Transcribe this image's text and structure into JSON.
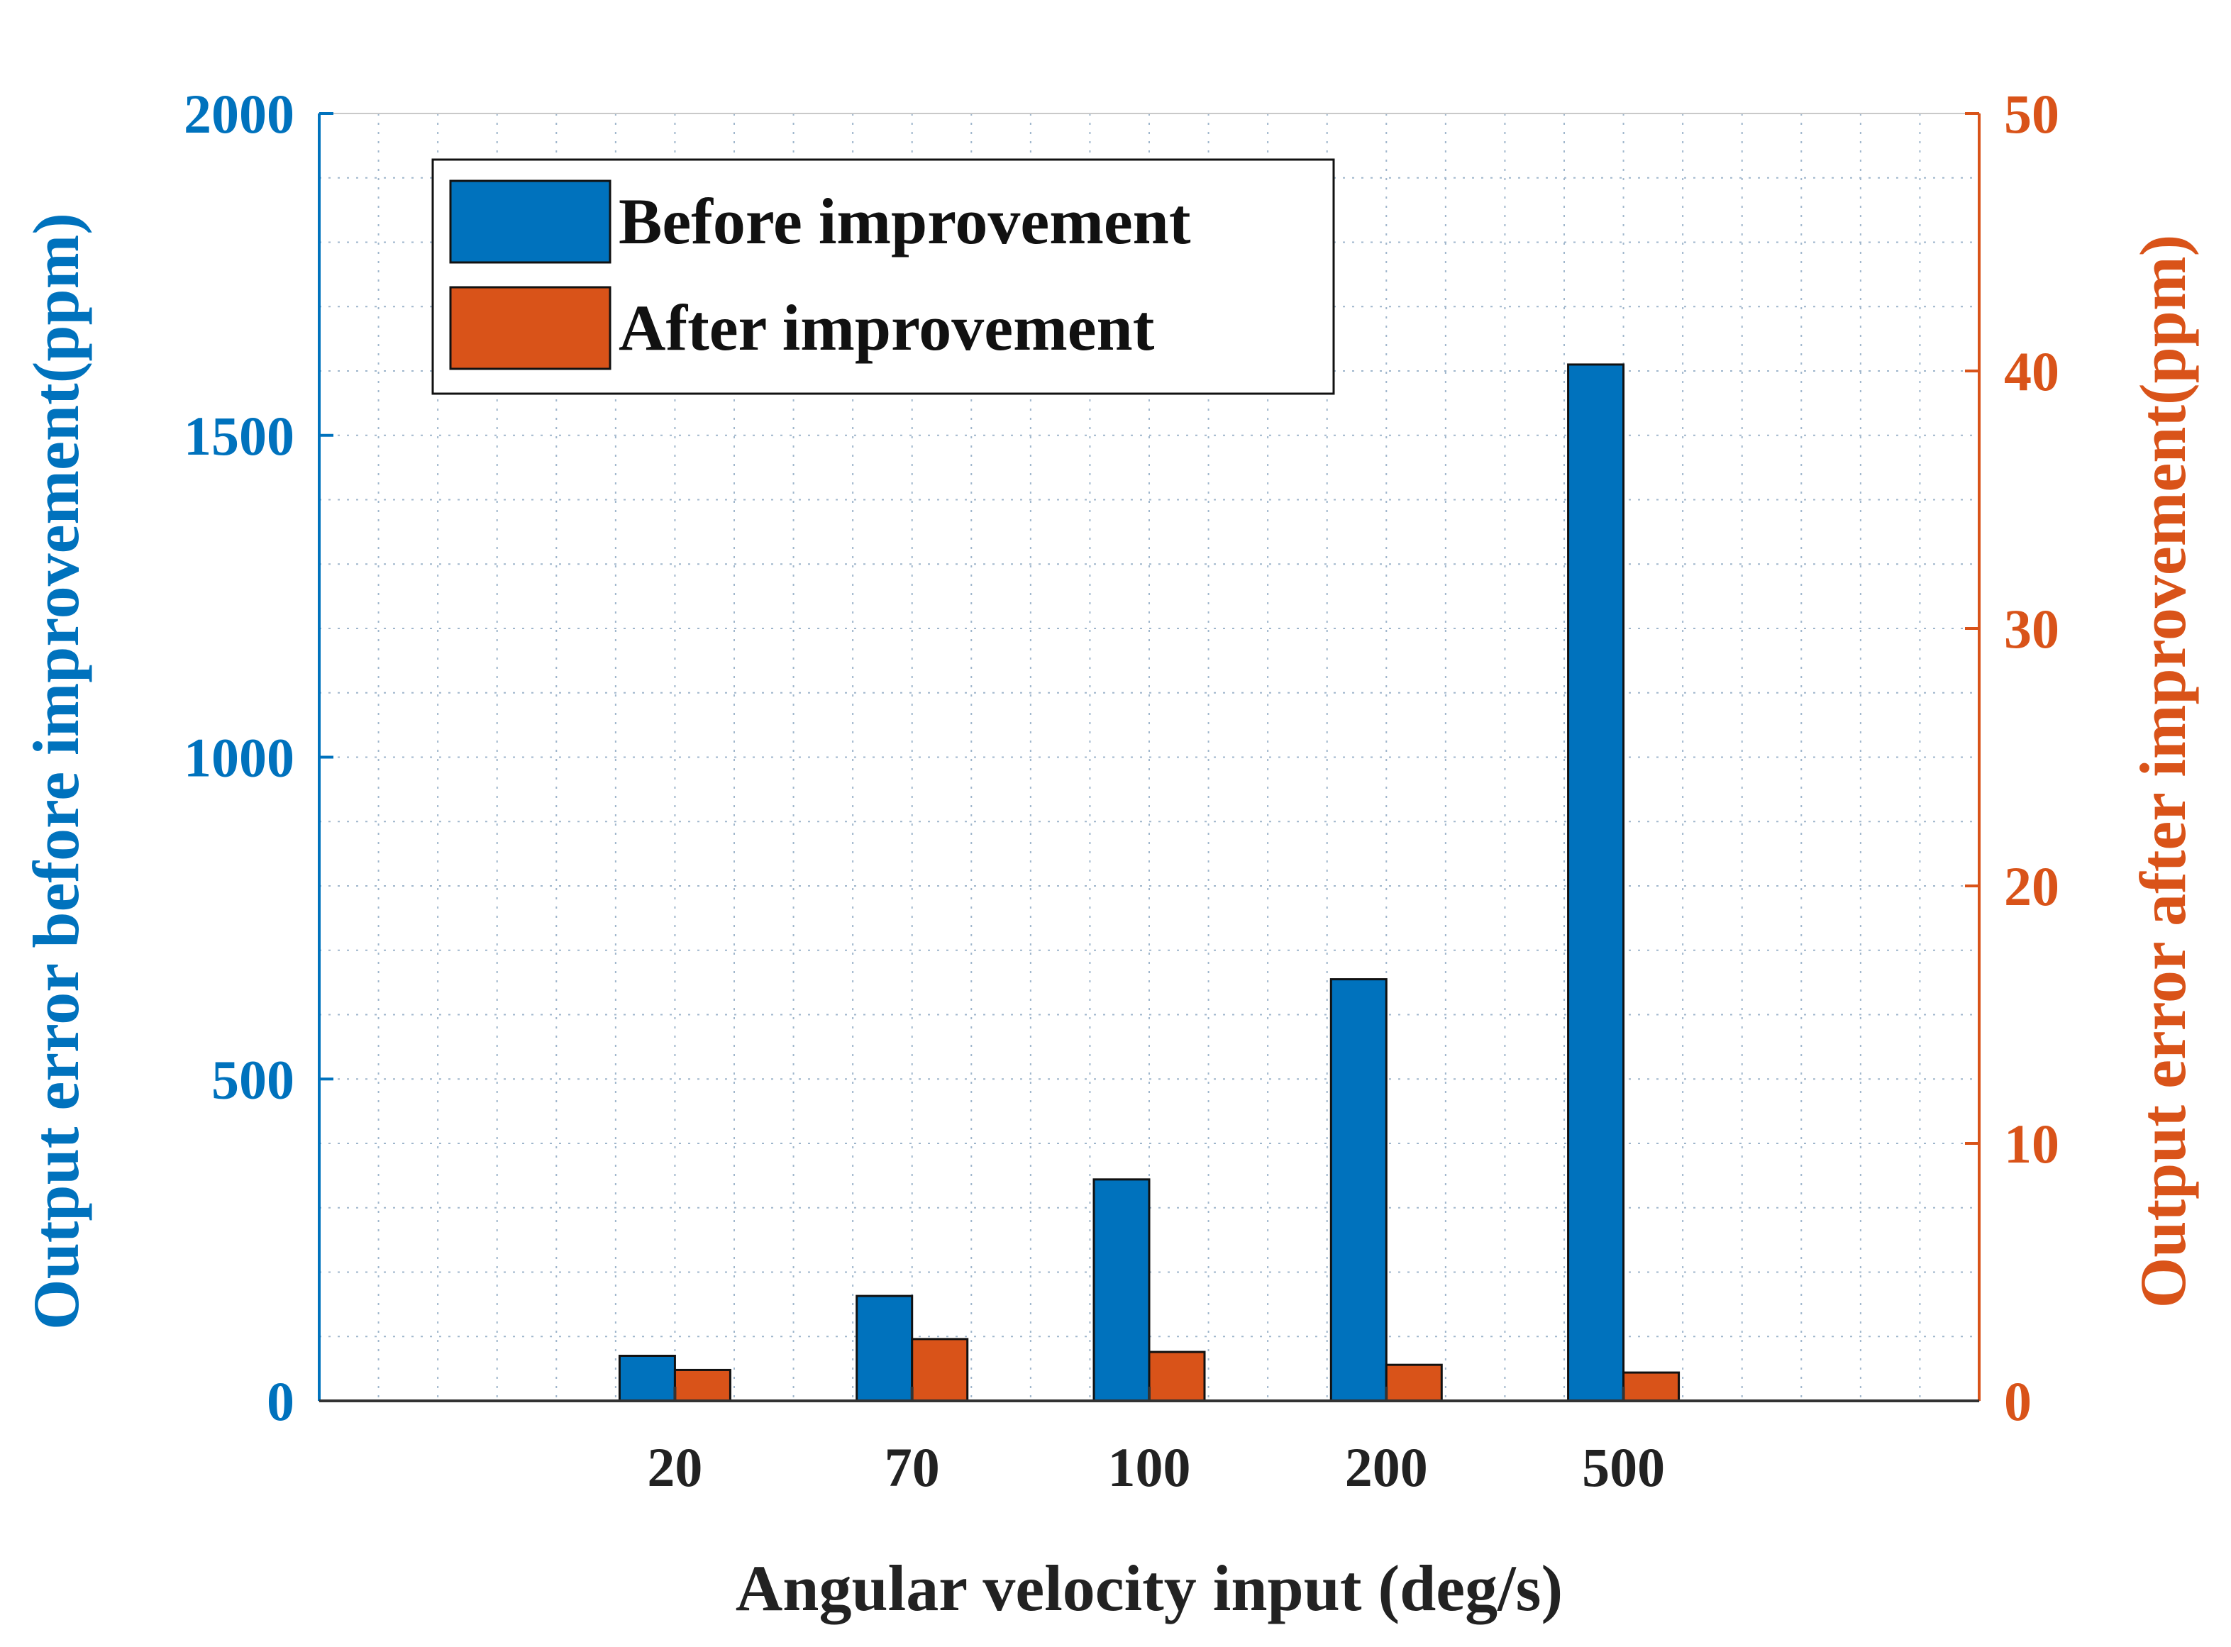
{
  "chart_data": {
    "type": "bar",
    "categories": [
      "20",
      "70",
      "100",
      "200",
      "500"
    ],
    "series": [
      {
        "name": "Before improvement",
        "axis": "left",
        "color": "#0072BD",
        "values": [
          70,
          163,
          344,
          655,
          1610
        ]
      },
      {
        "name": "After improvement",
        "axis": "right",
        "color": "#D95319",
        "values": [
          1.2,
          2.4,
          1.9,
          1.4,
          1.1
        ]
      }
    ],
    "xlabel": "Angular velocity input (deg/s)",
    "ylabel_left": "Output error before improvement(ppm)",
    "ylabel_right": "Output error after improvement(ppm)",
    "ylim_left": [
      0,
      2000
    ],
    "ylim_right": [
      0,
      50
    ],
    "yticks_left": [
      "0",
      "500",
      "1000",
      "1500",
      "2000"
    ],
    "yticks_right": [
      "0",
      "10",
      "20",
      "30",
      "40",
      "50"
    ],
    "grid": "on (dotted, with minor grid)",
    "legend_position": "top-left",
    "colors": {
      "left_axis": "#0072BD",
      "right_axis": "#D95319",
      "text": "#222222",
      "grid": "#9fb6cc"
    }
  }
}
